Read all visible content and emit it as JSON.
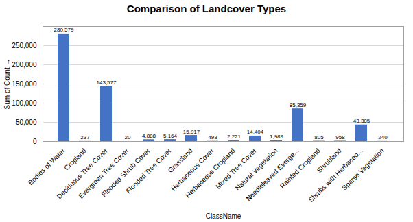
{
  "chart_data": {
    "type": "bar",
    "title": "Comparison of Landcover Types",
    "xlabel": "ClassName",
    "ylabel": "Sum of Count",
    "categories": [
      "Bodies of Water",
      "Cropland",
      "Deciduous Tree Cover",
      "Evergreen Tree Cover",
      "Flooded Shrub Cover",
      "Flooded Tree Cover",
      "Grassland",
      "Herbaceous Cover",
      "Herbaceous Cropland",
      "Mixed Tree Cover",
      "Natural Vegetation",
      "Needleleaved Everge...",
      "Rainfed Cropland",
      "Shrubland",
      "Shrubs with Herbaceo...",
      "Sparse Vegetation"
    ],
    "values": [
      280579,
      237,
      143577,
      20,
      4888,
      5164,
      15917,
      493,
      2221,
      14404,
      1989,
      85359,
      805,
      958,
      43385,
      240
    ],
    "value_labels": [
      "280,579",
      "237",
      "143,577",
      "20",
      "4,888",
      "5,164",
      "15,917",
      "493",
      "2,221",
      "14,404",
      "1,989",
      "85,359",
      "805",
      "958",
      "43,385",
      "240"
    ],
    "data_labels": true,
    "color": "#4472C4",
    "ylim": [
      0,
      300000
    ],
    "yticks": [
      0,
      {
        "value": 50000,
        "label": "50,000"
      },
      {
        "value": 100000,
        "label": "100,000"
      },
      {
        "value": 150000,
        "label": "150,000"
      },
      {
        "value": 200000,
        "label": "200,000"
      },
      {
        "value": 250000,
        "label": "250,000"
      }
    ],
    "grid": true
  }
}
